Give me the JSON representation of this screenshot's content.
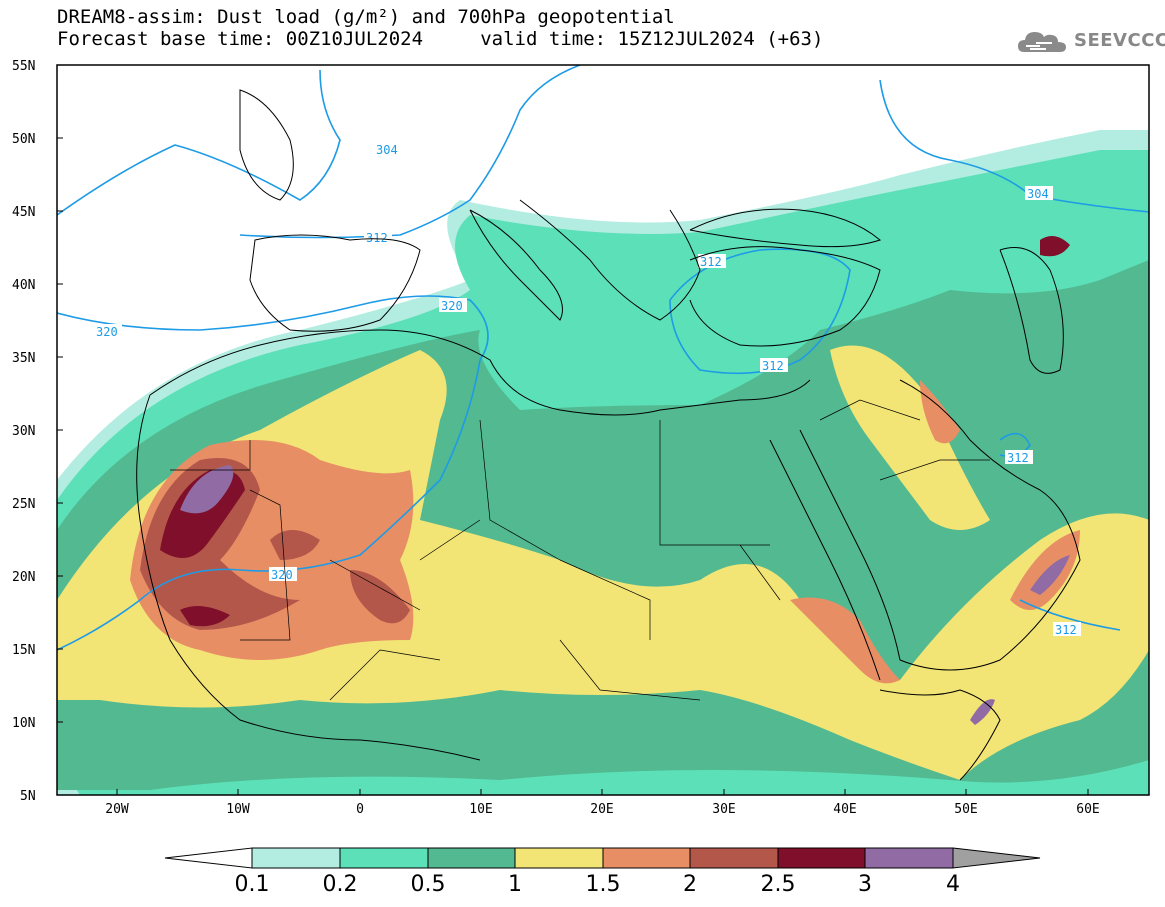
{
  "title": {
    "line1": "DREAM8-assim: Dust load (g/m²) and 700hPa geopotential",
    "line2": "Forecast base time: 00Z10JUL2024     valid time: 15Z12JUL2024 (+63)"
  },
  "logo": {
    "text": "SEEVCCC",
    "icon": "cloud-icon"
  },
  "map": {
    "lon_range": [
      -25,
      65
    ],
    "lat_range": [
      5,
      55
    ],
    "lat_ticks": [
      "55N",
      "50N",
      "45N",
      "40N",
      "35N",
      "30N",
      "25N",
      "20N",
      "15N",
      "10N",
      "5N"
    ],
    "lon_ticks": [
      "20W",
      "10W",
      "0",
      "10E",
      "20E",
      "30E",
      "40E",
      "50E",
      "60E"
    ]
  },
  "contours": [
    {
      "label": "304",
      "color": "#1e9be6"
    },
    {
      "label": "312",
      "color": "#1e9be6"
    },
    {
      "label": "320",
      "color": "#1e9be6"
    }
  ],
  "colorbar": {
    "levels": [
      "0.1",
      "0.2",
      "0.5",
      "1",
      "1.5",
      "2",
      "2.5",
      "3",
      "4"
    ],
    "colors": [
      "#ffffff",
      "#b3ede1",
      "#5ce0b8",
      "#52b991",
      "#f2e475",
      "#e88e65",
      "#b3574a",
      "#7f0f2a",
      "#916ba3",
      "#a0a0a0"
    ]
  }
}
